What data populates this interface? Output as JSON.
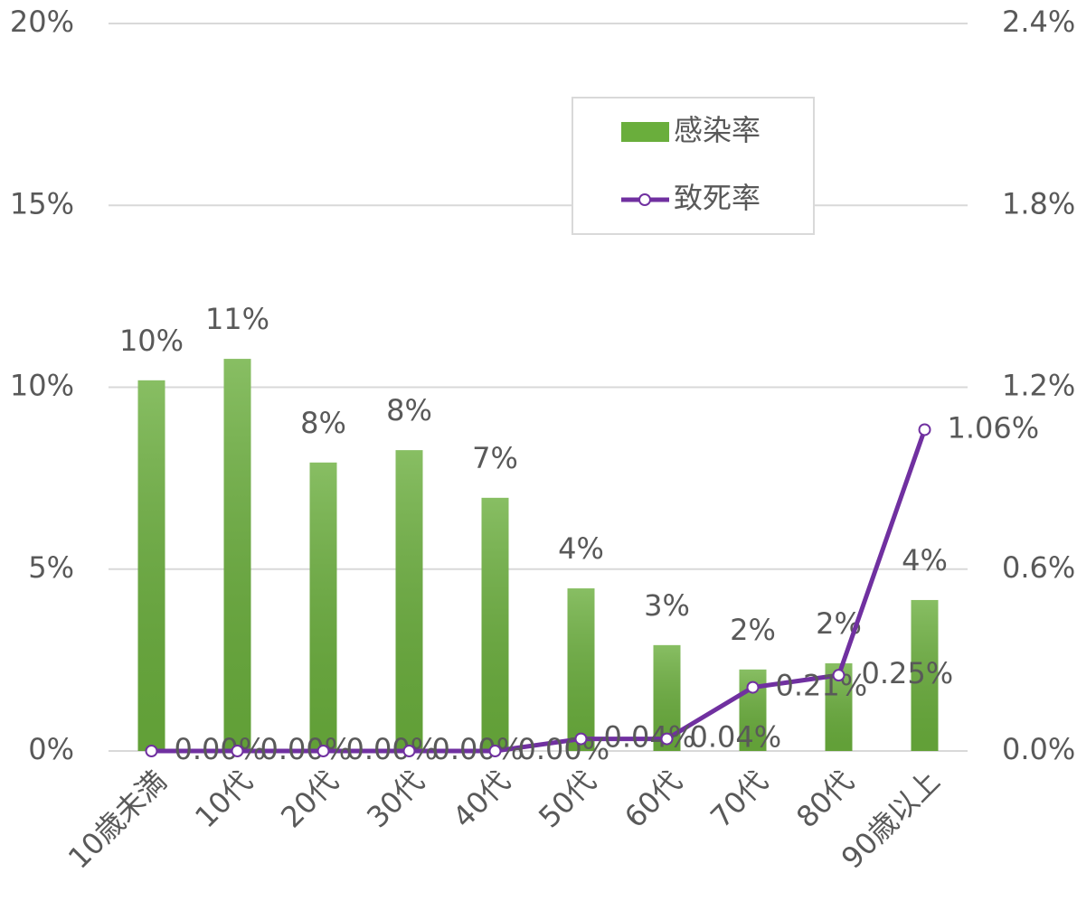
{
  "chart_data": {
    "type": "bar",
    "categories": [
      "10歳未満",
      "10代",
      "20代",
      "30代",
      "40代",
      "50代",
      "60代",
      "70代",
      "80代",
      "90歳以上"
    ],
    "series": [
      {
        "name": "感染率",
        "type": "bar",
        "color": "#6aae3c",
        "values": [
          10.19,
          10.78,
          7.93,
          8.27,
          6.96,
          4.47,
          2.91,
          2.24,
          2.41,
          4.15
        ],
        "value_labels": [
          "10%",
          "11%",
          "8%",
          "8%",
          "7%",
          "4%",
          "3%",
          "2%",
          "2%",
          "4%"
        ]
      },
      {
        "name": "致死率",
        "type": "line",
        "axis": "y2",
        "color": "#7030a0",
        "values": [
          0,
          0,
          0,
          0,
          0,
          0.04,
          0.04,
          0.21,
          0.25,
          1.06
        ],
        "value_labels": [
          "0.00%",
          "0.00%",
          "0.00%",
          "0.00%",
          "0.00%",
          "0.04%",
          "0.04%",
          "0.21%",
          "0.25%",
          "1.06%"
        ]
      }
    ],
    "ylim": [
      0,
      20
    ],
    "yticks": [
      {
        "value": 0,
        "label": "0%"
      },
      {
        "value": 5,
        "label": "5%"
      },
      {
        "value": 10,
        "label": "10%"
      },
      {
        "value": 15,
        "label": "15%"
      },
      {
        "value": 20,
        "label": "20%"
      }
    ],
    "y2lim": [
      0,
      2.4
    ],
    "y2ticks": [
      {
        "value": 0,
        "label": "0.0%"
      },
      {
        "value": 0.6,
        "label": "0.6%"
      },
      {
        "value": 1.2,
        "label": "1.2%"
      },
      {
        "value": 1.8,
        "label": "1.8%"
      },
      {
        "value": 2.4,
        "label": "2.4%"
      }
    ],
    "grid": true,
    "legend": "upper right"
  }
}
